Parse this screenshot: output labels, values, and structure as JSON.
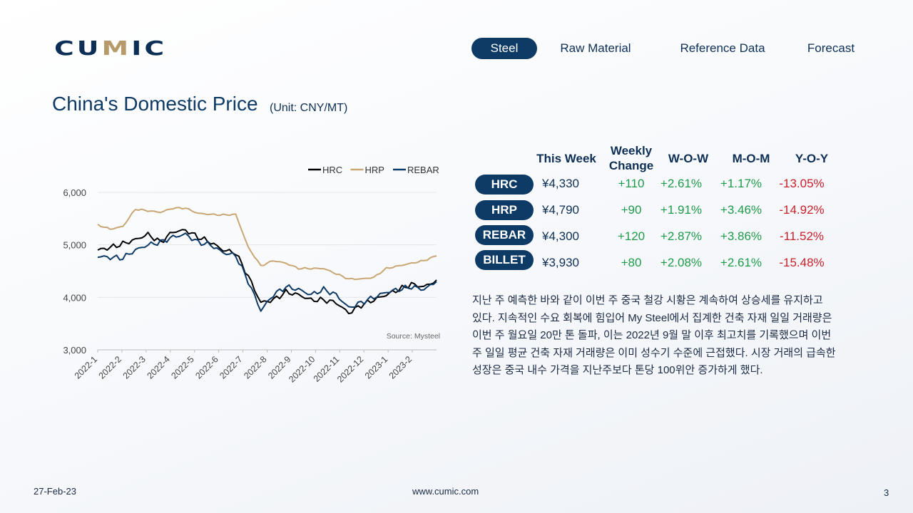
{
  "brand": {
    "logo_pre": "CU",
    "logo_m": "M",
    "logo_post": "IC"
  },
  "nav": [
    {
      "label": "Steel",
      "active": true
    },
    {
      "label": "Raw Material",
      "active": false
    },
    {
      "label": "Reference Data",
      "active": false
    },
    {
      "label": "Forecast",
      "active": false
    }
  ],
  "page": {
    "title": "China's Domestic Price",
    "unit": "(Unit: CNY/MT)"
  },
  "table": {
    "headers": [
      "This Week",
      "Weekly",
      "Change",
      "W-O-W",
      "M-O-M",
      "Y-O-Y"
    ],
    "rows": [
      {
        "name": "HRC",
        "price": "¥4,330",
        "change": "+110",
        "wow": "+2.61%",
        "mom": "+1.17%",
        "yoy": "-13.05%"
      },
      {
        "name": "HRP",
        "price": "¥4,790",
        "change": "+90",
        "wow": "+1.91%",
        "mom": "+3.46%",
        "yoy": "-14.92%"
      },
      {
        "name": "REBAR",
        "price": "¥4,300",
        "change": "+120",
        "wow": "+2.87%",
        "mom": "+3.86%",
        "yoy": "-11.52%"
      },
      {
        "name": "BILLET",
        "price": "¥3,930",
        "change": "+80",
        "wow": "+2.08%",
        "mom": "+2.61%",
        "yoy": "-15.48%"
      }
    ]
  },
  "commentary": "지난 주 예측한 바와 같이 이번 주 중국 철강 시황은 계속하여 상승세를 유지하고 있다. 지속적인 수요 회복에 힘입어 My Steel에서 집계한 건축 자재 일일 거래량은 이번 주 월요일 20만 톤 돌파, 이는 2022년 9월 말 이후 최고치를 기록했으며 이번 주 일일 평균 건축 자재 거래량은 이미 성수기 수준에 근접했다. 시장 거래의 급속한 성장은 중국 내수 가격을 지난주보다 톤당 100위안 증가하게 했다.",
  "footer": {
    "date": "27-Feb-23",
    "url": "www.cumic.com",
    "page": "3"
  },
  "colors": {
    "navy": "#0e3a66",
    "gold": "#c9a774",
    "positive": "#1f9a4a",
    "negative": "#c8202a"
  },
  "chart_data": {
    "type": "line",
    "source": "Source: Mysteel",
    "ylim": [
      3000,
      6000
    ],
    "y_ticks": [
      "3,000",
      "4,000",
      "5,000",
      "6,000"
    ],
    "y_tick_values": [
      3000,
      4000,
      5000,
      6000
    ],
    "x_ticks": [
      "2022-1",
      "2022-2",
      "2022-3",
      "2022-4",
      "2022-5",
      "2022-6",
      "2022-7",
      "2022-8",
      "2022-9",
      "2022-10",
      "2022-11",
      "2022-12",
      "2023-1",
      "2023-2"
    ],
    "legend_position": "top-right",
    "x": [
      "2022-1",
      "2022-1b",
      "2022-2",
      "2022-2b",
      "2022-3",
      "2022-3b",
      "2022-4",
      "2022-4b",
      "2022-5",
      "2022-5b",
      "2022-6",
      "2022-6b",
      "2022-7",
      "2022-7b",
      "2022-8",
      "2022-8b",
      "2022-9",
      "2022-9b",
      "2022-10",
      "2022-10b",
      "2022-11",
      "2022-11b",
      "2022-12",
      "2022-12b",
      "2023-1",
      "2023-1b",
      "2023-2",
      "2023-2b"
    ],
    "series": [
      {
        "name": "HRC",
        "color": "#000000",
        "values": [
          4900,
          4950,
          5020,
          5100,
          5200,
          5050,
          5250,
          5280,
          5150,
          5050,
          4900,
          4850,
          4400,
          3900,
          3950,
          4100,
          4050,
          3950,
          3950,
          3900,
          3700,
          3850,
          3950,
          4050,
          4150,
          4250,
          4200,
          4330
        ]
      },
      {
        "name": "HRP",
        "color": "#c9a774",
        "values": [
          5380,
          5300,
          5350,
          5680,
          5650,
          5620,
          5700,
          5700,
          5600,
          5580,
          5570,
          5580,
          4950,
          4600,
          4700,
          4650,
          4550,
          4550,
          4550,
          4450,
          4350,
          4350,
          4380,
          4550,
          4600,
          4650,
          4700,
          4790
        ]
      },
      {
        "name": "REBAR",
        "color": "#0e3a66",
        "values": [
          4780,
          4760,
          4750,
          4900,
          5000,
          5050,
          5150,
          5200,
          5050,
          5000,
          4850,
          4800,
          4300,
          3750,
          4050,
          4200,
          4150,
          4050,
          4150,
          4050,
          3800,
          3900,
          4000,
          4100,
          4150,
          4200,
          4150,
          4300
        ]
      }
    ]
  }
}
